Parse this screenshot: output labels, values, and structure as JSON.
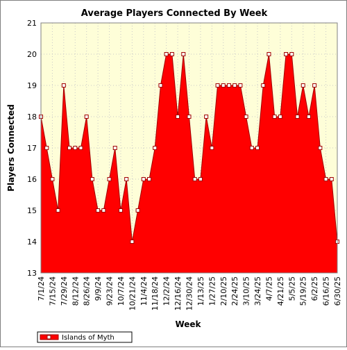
{
  "chart_data": {
    "type": "area",
    "title": "Average Players Connected By Week",
    "xlabel": "Week",
    "ylabel": "Players Connected",
    "ylim": [
      13,
      21
    ],
    "yticks": [
      13,
      14,
      15,
      16,
      17,
      18,
      19,
      20,
      21
    ],
    "grid": true,
    "legend_position": "bottom-left",
    "series": [
      {
        "name": "Islands of Myth",
        "color": "#ff0000",
        "edge_color": "#a00000",
        "values": [
          18,
          17,
          16,
          15,
          19,
          17,
          17,
          17,
          18,
          16,
          15,
          15,
          16,
          17,
          15,
          16,
          14,
          15,
          16,
          16,
          17,
          19,
          20,
          20,
          18,
          20,
          18,
          16,
          16,
          18,
          17,
          19,
          19,
          19,
          19,
          19,
          18,
          17,
          17,
          19,
          20,
          18,
          18,
          20,
          20,
          18,
          19,
          18,
          19,
          17,
          16,
          16,
          14
        ]
      }
    ],
    "x_tick_labels": [
      "7/1/24",
      "7/15/24",
      "7/29/24",
      "8/12/24",
      "8/26/24",
      "9/9/24",
      "9/23/24",
      "10/7/24",
      "10/21/24",
      "11/4/24",
      "11/18/24",
      "12/2/24",
      "12/16/24",
      "12/30/24",
      "1/13/25",
      "1/27/25",
      "2/10/25",
      "2/24/25",
      "3/10/25",
      "3/24/25",
      "4/7/25",
      "4/21/25",
      "5/5/25",
      "5/19/25",
      "6/2/25",
      "6/16/25",
      "6/30/25"
    ]
  },
  "colors": {
    "plot_background": "#fefed8",
    "grid": "#c8c8c8",
    "marker_fill": "#ffffff",
    "marker_edge": "#a00000"
  }
}
